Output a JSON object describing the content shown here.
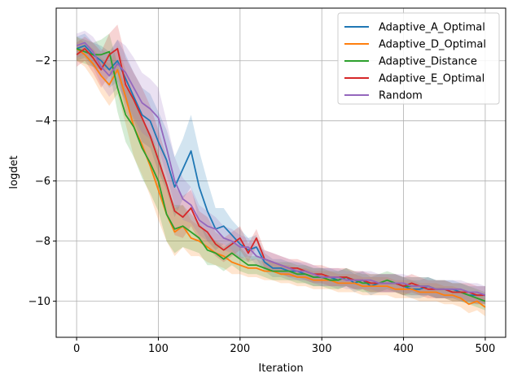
{
  "chart_data": {
    "type": "line",
    "title": "",
    "xlabel": "Iteration",
    "ylabel": "logdet",
    "xlim": [
      -25,
      525
    ],
    "ylim": [
      -11.2,
      -0.25
    ],
    "xticks": [
      0,
      100,
      200,
      300,
      400,
      500
    ],
    "yticks": [
      -10,
      -8,
      -6,
      -4,
      -2
    ],
    "grid": true,
    "legend_position": "top-right",
    "shaded_band": true,
    "series": [
      {
        "name": "Adaptive_A_Optimal",
        "color": "#1f77b4",
        "x": [
          0,
          10,
          20,
          30,
          40,
          50,
          60,
          70,
          80,
          90,
          100,
          110,
          120,
          130,
          140,
          150,
          160,
          170,
          180,
          190,
          200,
          210,
          220,
          230,
          240,
          250,
          260,
          270,
          280,
          290,
          300,
          310,
          320,
          330,
          340,
          350,
          360,
          370,
          380,
          390,
          400,
          410,
          420,
          430,
          440,
          450,
          460,
          470,
          480,
          490,
          500
        ],
        "y": [
          -1.6,
          -1.5,
          -1.8,
          -2.0,
          -2.3,
          -2.0,
          -2.6,
          -3.2,
          -3.8,
          -4.0,
          -4.7,
          -5.3,
          -6.2,
          -5.6,
          -5.0,
          -6.2,
          -7.0,
          -7.6,
          -7.5,
          -7.8,
          -8.1,
          -8.3,
          -8.2,
          -8.7,
          -8.9,
          -8.9,
          -9.0,
          -9.0,
          -9.1,
          -9.2,
          -9.2,
          -9.2,
          -9.3,
          -9.2,
          -9.4,
          -9.3,
          -9.5,
          -9.4,
          -9.4,
          -9.4,
          -9.5,
          -9.6,
          -9.6,
          -9.5,
          -9.6,
          -9.6,
          -9.6,
          -9.7,
          -9.8,
          -9.8,
          -9.8
        ],
        "band": [
          0.4,
          0.4,
          0.4,
          0.5,
          0.6,
          0.7,
          0.8,
          0.8,
          0.9,
          0.9,
          1.0,
          1.0,
          1.0,
          1.0,
          1.2,
          1.2,
          1.0,
          0.7,
          0.6,
          0.5,
          0.5,
          0.4,
          0.4,
          0.3,
          0.3,
          0.3,
          0.3,
          0.3,
          0.3,
          0.3,
          0.3,
          0.3,
          0.3,
          0.3,
          0.3,
          0.3,
          0.3,
          0.3,
          0.3,
          0.3,
          0.3,
          0.3,
          0.3,
          0.3,
          0.3,
          0.3,
          0.3,
          0.3,
          0.3,
          0.3,
          0.3
        ]
      },
      {
        "name": "Adaptive_D_Optimal",
        "color": "#ff7f0e",
        "x": [
          0,
          10,
          20,
          30,
          40,
          50,
          60,
          70,
          80,
          90,
          100,
          110,
          120,
          130,
          140,
          150,
          160,
          170,
          180,
          190,
          200,
          210,
          220,
          230,
          240,
          250,
          260,
          270,
          280,
          290,
          300,
          310,
          320,
          330,
          340,
          350,
          360,
          370,
          380,
          390,
          400,
          410,
          420,
          430,
          440,
          450,
          460,
          470,
          480,
          490,
          500
        ],
        "y": [
          -1.6,
          -1.8,
          -2.1,
          -2.5,
          -2.8,
          -2.3,
          -3.2,
          -4.2,
          -4.8,
          -5.5,
          -6.3,
          -7.1,
          -7.7,
          -7.5,
          -7.9,
          -8.0,
          -8.2,
          -8.4,
          -8.5,
          -8.7,
          -8.8,
          -8.9,
          -8.9,
          -9.0,
          -9.0,
          -9.1,
          -9.1,
          -9.2,
          -9.2,
          -9.3,
          -9.3,
          -9.3,
          -9.4,
          -9.4,
          -9.4,
          -9.5,
          -9.5,
          -9.5,
          -9.5,
          -9.6,
          -9.6,
          -9.6,
          -9.7,
          -9.7,
          -9.7,
          -9.8,
          -9.8,
          -9.9,
          -10.1,
          -10.0,
          -10.2
        ],
        "band": [
          0.4,
          0.4,
          0.5,
          0.6,
          0.7,
          0.8,
          0.9,
          1.0,
          1.0,
          1.0,
          1.0,
          0.9,
          0.8,
          0.7,
          0.6,
          0.5,
          0.5,
          0.4,
          0.4,
          0.4,
          0.3,
          0.3,
          0.3,
          0.3,
          0.3,
          0.3,
          0.3,
          0.3,
          0.3,
          0.3,
          0.3,
          0.3,
          0.3,
          0.3,
          0.3,
          0.3,
          0.3,
          0.3,
          0.3,
          0.3,
          0.3,
          0.3,
          0.3,
          0.3,
          0.3,
          0.3,
          0.3,
          0.3,
          0.3,
          0.3,
          0.3
        ]
      },
      {
        "name": "Adaptive_Distance",
        "color": "#2ca02c",
        "x": [
          0,
          10,
          20,
          30,
          40,
          50,
          60,
          70,
          80,
          90,
          100,
          110,
          120,
          130,
          140,
          150,
          160,
          170,
          180,
          190,
          200,
          210,
          220,
          230,
          240,
          250,
          260,
          270,
          280,
          290,
          300,
          310,
          320,
          330,
          340,
          350,
          360,
          370,
          380,
          390,
          400,
          410,
          420,
          430,
          440,
          450,
          460,
          470,
          480,
          490,
          500
        ],
        "y": [
          -1.6,
          -1.7,
          -1.8,
          -1.8,
          -1.7,
          -2.9,
          -3.8,
          -4.2,
          -4.9,
          -5.4,
          -6.0,
          -7.1,
          -7.6,
          -7.5,
          -7.7,
          -7.9,
          -8.3,
          -8.4,
          -8.6,
          -8.4,
          -8.6,
          -8.8,
          -8.8,
          -8.9,
          -9.0,
          -9.0,
          -9.0,
          -9.1,
          -9.1,
          -9.2,
          -9.2,
          -9.3,
          -9.3,
          -9.2,
          -9.3,
          -9.4,
          -9.4,
          -9.4,
          -9.3,
          -9.4,
          -9.5,
          -9.5,
          -9.5,
          -9.5,
          -9.6,
          -9.6,
          -9.7,
          -9.7,
          -9.8,
          -9.9,
          -10.0
        ],
        "band": [
          0.4,
          0.4,
          0.4,
          0.5,
          0.6,
          0.8,
          0.9,
          1.0,
          1.0,
          1.0,
          1.0,
          0.9,
          0.8,
          0.7,
          0.6,
          0.5,
          0.5,
          0.4,
          0.4,
          0.4,
          0.4,
          0.3,
          0.3,
          0.3,
          0.3,
          0.3,
          0.3,
          0.3,
          0.3,
          0.3,
          0.3,
          0.3,
          0.3,
          0.3,
          0.3,
          0.3,
          0.3,
          0.3,
          0.3,
          0.3,
          0.3,
          0.3,
          0.3,
          0.3,
          0.3,
          0.3,
          0.3,
          0.3,
          0.3,
          0.3,
          0.3
        ]
      },
      {
        "name": "Adaptive_E_Optimal",
        "color": "#d62728",
        "x": [
          0,
          10,
          20,
          30,
          40,
          50,
          60,
          70,
          80,
          90,
          100,
          110,
          120,
          130,
          140,
          150,
          160,
          170,
          180,
          190,
          200,
          210,
          220,
          230,
          240,
          250,
          260,
          270,
          280,
          290,
          300,
          310,
          320,
          330,
          340,
          350,
          360,
          370,
          380,
          390,
          400,
          410,
          420,
          430,
          440,
          450,
          460,
          470,
          480,
          490,
          500
        ],
        "y": [
          -1.8,
          -1.6,
          -1.9,
          -2.3,
          -1.8,
          -1.6,
          -2.8,
          -3.3,
          -3.9,
          -4.5,
          -5.3,
          -6.1,
          -7.0,
          -7.2,
          -6.9,
          -7.5,
          -7.7,
          -8.1,
          -8.3,
          -8.1,
          -7.9,
          -8.4,
          -7.9,
          -8.6,
          -8.7,
          -8.8,
          -8.9,
          -8.9,
          -9.0,
          -9.1,
          -9.1,
          -9.2,
          -9.2,
          -9.2,
          -9.3,
          -9.3,
          -9.4,
          -9.4,
          -9.4,
          -9.4,
          -9.5,
          -9.4,
          -9.5,
          -9.6,
          -9.6,
          -9.6,
          -9.7,
          -9.7,
          -9.7,
          -9.8,
          -9.8
        ],
        "band": [
          0.4,
          0.4,
          0.5,
          0.6,
          0.7,
          0.8,
          0.9,
          0.9,
          1.0,
          1.0,
          1.0,
          0.9,
          0.8,
          0.7,
          0.6,
          0.5,
          0.5,
          0.4,
          0.4,
          0.4,
          0.4,
          0.3,
          0.3,
          0.3,
          0.3,
          0.3,
          0.3,
          0.3,
          0.3,
          0.3,
          0.3,
          0.3,
          0.3,
          0.3,
          0.3,
          0.3,
          0.3,
          0.3,
          0.3,
          0.3,
          0.3,
          0.3,
          0.3,
          0.3,
          0.3,
          0.3,
          0.3,
          0.3,
          0.3,
          0.3,
          0.3
        ]
      },
      {
        "name": "Random",
        "color": "#9467bd",
        "x": [
          0,
          10,
          20,
          30,
          40,
          50,
          60,
          70,
          80,
          90,
          100,
          110,
          120,
          130,
          140,
          150,
          160,
          170,
          180,
          190,
          200,
          210,
          220,
          230,
          240,
          250,
          260,
          270,
          280,
          290,
          300,
          310,
          320,
          330,
          340,
          350,
          360,
          370,
          380,
          390,
          400,
          410,
          420,
          430,
          440,
          450,
          460,
          470,
          480,
          490,
          500
        ],
        "y": [
          -1.5,
          -1.4,
          -1.7,
          -2.2,
          -2.5,
          -2.1,
          -2.4,
          -2.9,
          -3.4,
          -3.6,
          -3.9,
          -4.9,
          -6.0,
          -6.6,
          -6.8,
          -7.3,
          -7.5,
          -7.6,
          -7.9,
          -8.0,
          -8.2,
          -8.2,
          -8.5,
          -8.6,
          -8.7,
          -8.8,
          -8.9,
          -9.0,
          -9.0,
          -9.1,
          -9.2,
          -9.2,
          -9.2,
          -9.3,
          -9.3,
          -9.3,
          -9.3,
          -9.4,
          -9.4,
          -9.4,
          -9.4,
          -9.5,
          -9.5,
          -9.5,
          -9.6,
          -9.6,
          -9.6,
          -9.6,
          -9.7,
          -9.7,
          -9.8
        ],
        "band": [
          0.4,
          0.4,
          0.5,
          0.6,
          0.7,
          0.8,
          0.9,
          1.0,
          1.0,
          1.0,
          1.0,
          0.9,
          0.8,
          0.7,
          0.6,
          0.5,
          0.5,
          0.4,
          0.4,
          0.4,
          0.4,
          0.3,
          0.3,
          0.3,
          0.3,
          0.3,
          0.3,
          0.3,
          0.3,
          0.3,
          0.3,
          0.3,
          0.3,
          0.3,
          0.3,
          0.3,
          0.3,
          0.3,
          0.3,
          0.3,
          0.3,
          0.3,
          0.3,
          0.3,
          0.3,
          0.3,
          0.3,
          0.3,
          0.3,
          0.3,
          0.3
        ]
      }
    ]
  }
}
